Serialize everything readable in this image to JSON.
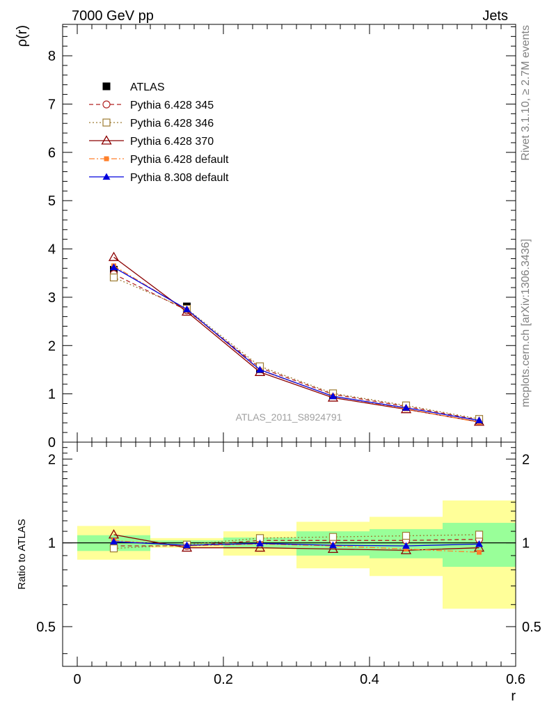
{
  "header": {
    "left": "7000 GeV pp",
    "right": "Jets"
  },
  "side_text": {
    "upper": "Rivet 3.1.10, ≥ 2.7M events",
    "lower": "mcplots.cern.ch [arXiv:1306.3436]"
  },
  "watermark": "ATLAS_2011_S8924791",
  "chart_data": [
    {
      "type": "line",
      "panel": "main",
      "ylabel": "ρ(r)",
      "xlabel": "",
      "xlim": [
        -0.02,
        0.6
      ],
      "ylim": [
        0,
        8.65
      ],
      "yticks": [
        0,
        1,
        2,
        3,
        4,
        5,
        6,
        7,
        8
      ],
      "ytick_labels": [
        "0",
        "1",
        "2",
        "3",
        "4",
        "5",
        "6",
        "7",
        "8"
      ],
      "x": [
        0.05,
        0.15,
        0.25,
        0.35,
        0.45,
        0.55
      ],
      "legend_position": "top-left",
      "series": [
        {
          "name": "ATLAS",
          "values": [
            3.57,
            2.81,
            1.51,
            0.97,
            0.73,
            0.45
          ],
          "color": "#000000",
          "marker": "filled-square",
          "line": "none"
        },
        {
          "name": "Pythia 6.428 345",
          "values": [
            3.48,
            2.73,
            1.54,
            0.99,
            0.74,
            0.46
          ],
          "color": "#b22222",
          "marker": "open-circle",
          "line": "dashed"
        },
        {
          "name": "Pythia 6.428 346",
          "values": [
            3.41,
            2.76,
            1.57,
            1.01,
            0.76,
            0.48
          ],
          "color": "#9c7a30",
          "marker": "open-square",
          "line": "dotted"
        },
        {
          "name": "Pythia 6.428 370",
          "values": [
            3.83,
            2.7,
            1.45,
            0.92,
            0.68,
            0.42
          ],
          "color": "#8b0000",
          "marker": "open-triangle",
          "line": "solid"
        },
        {
          "name": "Pythia 6.428 default",
          "values": [
            3.65,
            2.74,
            1.49,
            0.95,
            0.69,
            0.41
          ],
          "color": "#ff7f2a",
          "marker": "filled-square-small",
          "line": "dashdot"
        },
        {
          "name": "Pythia 8.308 default",
          "values": [
            3.62,
            2.75,
            1.5,
            0.95,
            0.71,
            0.45
          ],
          "color": "#0000dd",
          "marker": "filled-triangle",
          "line": "solid"
        }
      ]
    },
    {
      "type": "line",
      "panel": "ratio",
      "ylabel": "Ratio to ATLAS",
      "xlabel": "r",
      "xlim": [
        -0.02,
        0.6
      ],
      "ylim": [
        0.36,
        2.3
      ],
      "scale": "log",
      "yticks": [
        0.5,
        1,
        2
      ],
      "ytick_labels": [
        "0.5",
        "1",
        "2"
      ],
      "xticks": [
        0,
        0.2,
        0.4,
        0.6
      ],
      "xtick_labels": [
        "0",
        "0.2",
        "0.4",
        "0.6"
      ],
      "x": [
        0.05,
        0.15,
        0.25,
        0.35,
        0.45,
        0.55
      ],
      "bands": {
        "bin_edges": [
          0.0,
          0.1,
          0.2,
          0.3,
          0.4,
          0.5,
          0.6
        ],
        "yellow": [
          [
            0.87,
            1.15
          ],
          [
            0.96,
            1.04
          ],
          [
            0.9,
            1.1
          ],
          [
            0.81,
            1.19
          ],
          [
            0.76,
            1.24
          ],
          [
            0.58,
            1.42
          ]
        ],
        "green": [
          [
            0.935,
            1.065
          ],
          [
            0.98,
            1.02
          ],
          [
            0.955,
            1.045
          ],
          [
            0.9,
            1.1
          ],
          [
            0.88,
            1.12
          ],
          [
            0.82,
            1.18
          ]
        ],
        "yellow_color": "#ffff99",
        "green_color": "#99ff99"
      },
      "series": [
        {
          "name": "Pythia 6.428 345",
          "values": [
            0.975,
            0.975,
            1.02,
            1.02,
            1.02,
            1.03
          ],
          "color": "#b22222",
          "marker": "open-circle",
          "line": "dashed"
        },
        {
          "name": "Pythia 6.428 346",
          "values": [
            0.955,
            0.985,
            1.04,
            1.05,
            1.06,
            1.07
          ],
          "color": "#9c7a30",
          "marker": "open-square",
          "line": "dotted"
        },
        {
          "name": "Pythia 6.428 370",
          "values": [
            1.07,
            0.96,
            0.96,
            0.95,
            0.94,
            0.96
          ],
          "color": "#8b0000",
          "marker": "open-triangle",
          "line": "solid"
        },
        {
          "name": "Pythia 6.428 default",
          "values": [
            1.02,
            0.975,
            0.99,
            0.975,
            0.95,
            0.925
          ],
          "color": "#ff7f2a",
          "marker": "filled-square-small",
          "line": "dashdot"
        },
        {
          "name": "Pythia 8.308 default",
          "values": [
            1.01,
            0.98,
            0.995,
            0.98,
            0.975,
            0.99
          ],
          "color": "#0000dd",
          "marker": "filled-triangle",
          "line": "solid"
        }
      ]
    }
  ]
}
